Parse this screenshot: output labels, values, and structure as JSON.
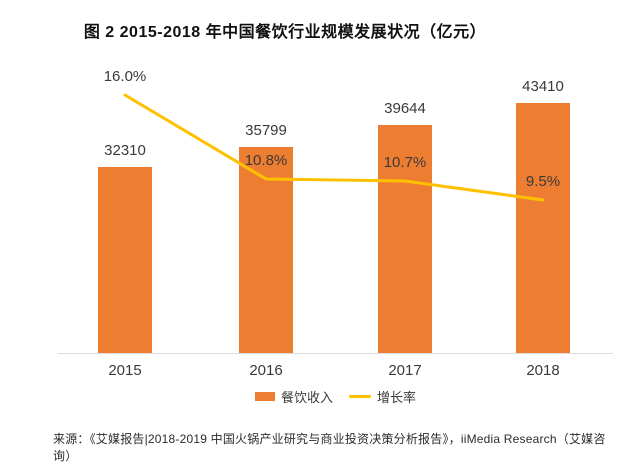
{
  "source_note": "来源：《艾媒报告|2018-2019 中国火锅产业研究与商业投资决策分析报告》，iiMedia Research（艾媒咨询）",
  "colors": {
    "bar": "#ED7D31",
    "line": "#FFC000",
    "axis": "#DCDCDC",
    "label_text": "#3A3A3A",
    "title_text": "#111111",
    "source_text": "#2B2B2B",
    "background": "#FFFFFF"
  },
  "chart_data": {
    "type": "bar",
    "subtype": "bar-line-combo",
    "title": "图 2  2015-2018 年中国餐饮行业规模发展状况（亿元）",
    "categories": [
      "2015",
      "2016",
      "2017",
      "2018"
    ],
    "series": [
      {
        "name": "餐饮收入",
        "type": "bar",
        "axis": "primary",
        "unit": "亿元",
        "values": [
          32310,
          35799,
          39644,
          43410
        ],
        "data_labels": [
          "32310",
          "35799",
          "39644",
          "43410"
        ]
      },
      {
        "name": "增长率",
        "type": "line",
        "axis": "secondary",
        "unit": "%",
        "values": [
          16.0,
          10.8,
          10.7,
          9.5
        ],
        "data_labels": [
          "16.0%",
          "10.8%",
          "10.7%",
          "9.5%"
        ]
      }
    ],
    "xlabel": "",
    "ylabel": "",
    "grid": false,
    "y_axis_visible": false,
    "legend_position": "bottom"
  }
}
